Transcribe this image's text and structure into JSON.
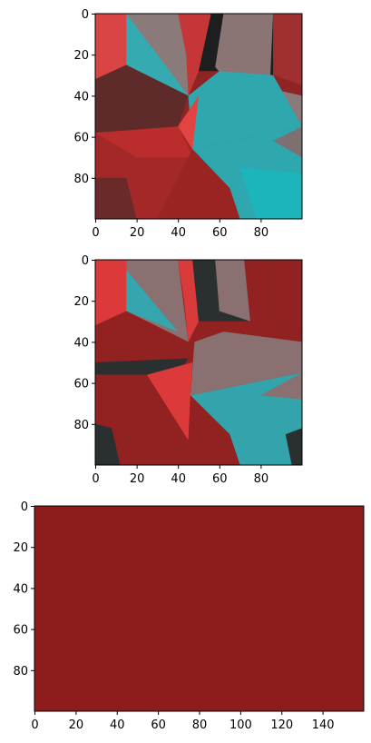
{
  "chart_data": [
    {
      "type": "image",
      "title": "",
      "xlim": [
        0,
        100
      ],
      "ylim": [
        100,
        0
      ],
      "xticks": [
        0,
        20,
        40,
        60,
        80
      ],
      "yticks": [
        0,
        20,
        40,
        60,
        80
      ],
      "description_colors": [
        "#d93a3a",
        "#33a9b0",
        "#8a7070",
        "#941e1e",
        "#2a2d2f",
        "#1fb7bd"
      ],
      "regions": [
        {
          "color": "#8f2424",
          "points": [
            [
              0,
              0
            ],
            [
              100,
              0
            ],
            [
              100,
              100
            ],
            [
              0,
              100
            ]
          ]
        },
        {
          "color": "#d94444",
          "points": [
            [
              0,
              0
            ],
            [
              15,
              0
            ],
            [
              15,
              25
            ],
            [
              0,
              32
            ]
          ]
        },
        {
          "color": "#8a7a7a",
          "points": [
            [
              15,
              0
            ],
            [
              56,
              0
            ],
            [
              45,
              40
            ],
            [
              15,
              25
            ]
          ]
        },
        {
          "color": "#35aab0",
          "points": [
            [
              15,
              0
            ],
            [
              45,
              40
            ],
            [
              15,
              25
            ]
          ]
        },
        {
          "color": "#c53636",
          "points": [
            [
              40,
              0
            ],
            [
              57,
              0
            ],
            [
              50,
              28
            ],
            [
              45,
              40
            ],
            [
              44,
              20
            ]
          ]
        },
        {
          "color": "#1d1e20",
          "points": [
            [
              56,
              0
            ],
            [
              100,
              0
            ],
            [
              100,
              35
            ],
            [
              86,
              30
            ],
            [
              60,
              28
            ],
            [
              50,
              28
            ]
          ]
        },
        {
          "color": "#8b7474",
          "points": [
            [
              62,
              0
            ],
            [
              86,
              0
            ],
            [
              84,
              45
            ],
            [
              70,
              40
            ],
            [
              58,
              26
            ]
          ]
        },
        {
          "color": "#a03030",
          "points": [
            [
              86,
              0
            ],
            [
              100,
              0
            ],
            [
              100,
              35
            ],
            [
              86,
              30
            ]
          ]
        },
        {
          "color": "#5e2a2a",
          "points": [
            [
              0,
              32
            ],
            [
              15,
              25
            ],
            [
              45,
              40
            ],
            [
              40,
              55
            ],
            [
              0,
              58
            ]
          ]
        },
        {
          "color": "#8a7a7a",
          "points": [
            [
              45,
              40
            ],
            [
              65,
              32
            ],
            [
              100,
              40
            ],
            [
              100,
              55
            ],
            [
              47,
              66
            ]
          ]
        },
        {
          "color": "#2fa7ae",
          "points": [
            [
              45,
              40
            ],
            [
              60,
              28
            ],
            [
              86,
              30
            ],
            [
              100,
              55
            ],
            [
              47,
              66
            ]
          ]
        },
        {
          "color": "#e24444",
          "points": [
            [
              40,
              55
            ],
            [
              50,
              40
            ],
            [
              47,
              66
            ],
            [
              38,
              70
            ]
          ]
        },
        {
          "color": "#a52828",
          "points": [
            [
              0,
              58
            ],
            [
              40,
              55
            ],
            [
              47,
              66
            ],
            [
              30,
              100
            ],
            [
              0,
              100
            ]
          ]
        },
        {
          "color": "#bb2d2d",
          "points": [
            [
              0,
              58
            ],
            [
              40,
              55
            ],
            [
              47,
              70
            ],
            [
              20,
              70
            ]
          ]
        },
        {
          "color": "#2fa7ae",
          "points": [
            [
              47,
              66
            ],
            [
              100,
              55
            ],
            [
              100,
              100
            ],
            [
              70,
              100
            ],
            [
              65,
              85
            ]
          ]
        },
        {
          "color": "#1cb5bb",
          "points": [
            [
              70,
              75
            ],
            [
              100,
              78
            ],
            [
              100,
              100
            ],
            [
              78,
              100
            ]
          ]
        },
        {
          "color": "#9a2323",
          "points": [
            [
              30,
              100
            ],
            [
              47,
              66
            ],
            [
              65,
              85
            ],
            [
              70,
              100
            ]
          ]
        },
        {
          "color": "#6b2a2a",
          "points": [
            [
              0,
              80
            ],
            [
              15,
              80
            ],
            [
              20,
              100
            ],
            [
              0,
              100
            ]
          ]
        },
        {
          "color": "#7d7070",
          "points": [
            [
              86,
              62
            ],
            [
              100,
              55
            ],
            [
              100,
              70
            ]
          ]
        }
      ]
    },
    {
      "type": "image",
      "title": "",
      "xlim": [
        0,
        100
      ],
      "ylim": [
        100,
        0
      ],
      "xticks": [
        0,
        20,
        40,
        60,
        80
      ],
      "yticks": [
        0,
        20,
        40,
        60,
        80
      ],
      "regions": [
        {
          "color": "#922222",
          "points": [
            [
              0,
              0
            ],
            [
              100,
              0
            ],
            [
              100,
              100
            ],
            [
              0,
              100
            ]
          ]
        },
        {
          "color": "#dc3a3a",
          "points": [
            [
              0,
              0
            ],
            [
              15,
              0
            ],
            [
              15,
              25
            ],
            [
              0,
              32
            ]
          ]
        },
        {
          "color": "#8a7070",
          "points": [
            [
              15,
              0
            ],
            [
              40,
              0
            ],
            [
              45,
              40
            ],
            [
              15,
              25
            ]
          ]
        },
        {
          "color": "#35a6ad",
          "points": [
            [
              15,
              5
            ],
            [
              40,
              35
            ],
            [
              15,
              25
            ]
          ]
        },
        {
          "color": "#d93a3a",
          "points": [
            [
              40,
              0
            ],
            [
              47,
              0
            ],
            [
              50,
              30
            ],
            [
              45,
              40
            ],
            [
              43,
              20
            ]
          ]
        },
        {
          "color": "#2a3030",
          "points": [
            [
              47,
              0
            ],
            [
              100,
              0
            ],
            [
              100,
              35
            ],
            [
              85,
              30
            ],
            [
              55,
              30
            ],
            [
              50,
              30
            ]
          ]
        },
        {
          "color": "#8a7070",
          "points": [
            [
              58,
              0
            ],
            [
              72,
              0
            ],
            [
              75,
              30
            ],
            [
              60,
              25
            ]
          ]
        },
        {
          "color": "#922222",
          "points": [
            [
              85,
              0
            ],
            [
              100,
              0
            ],
            [
              100,
              35
            ],
            [
              85,
              30
            ]
          ]
        },
        {
          "color": "#922222",
          "points": [
            [
              72,
              0
            ],
            [
              85,
              0
            ],
            [
              85,
              30
            ],
            [
              75,
              30
            ]
          ]
        },
        {
          "color": "#922222",
          "points": [
            [
              0,
              32
            ],
            [
              15,
              25
            ],
            [
              45,
              40
            ],
            [
              40,
              52
            ],
            [
              0,
              52
            ]
          ]
        },
        {
          "color": "#2a3030",
          "points": [
            [
              0,
              50
            ],
            [
              45,
              48
            ],
            [
              40,
              56
            ],
            [
              0,
              56
            ]
          ]
        },
        {
          "color": "#8a7070",
          "points": [
            [
              48,
              40
            ],
            [
              62,
              35
            ],
            [
              100,
              40
            ],
            [
              100,
              55
            ],
            [
              46,
              66
            ]
          ]
        },
        {
          "color": "#33a4ab",
          "points": [
            [
              46,
              66
            ],
            [
              100,
              55
            ],
            [
              100,
              100
            ],
            [
              70,
              100
            ],
            [
              65,
              85
            ]
          ]
        },
        {
          "color": "#dc3a3a",
          "points": [
            [
              25,
              56
            ],
            [
              47,
              50
            ],
            [
              46,
              66
            ],
            [
              45,
              88
            ]
          ]
        },
        {
          "color": "#922222",
          "points": [
            [
              0,
              56
            ],
            [
              25,
              56
            ],
            [
              45,
              88
            ],
            [
              40,
              100
            ],
            [
              0,
              100
            ]
          ]
        },
        {
          "color": "#2a3030",
          "points": [
            [
              0,
              80
            ],
            [
              8,
              82
            ],
            [
              12,
              100
            ],
            [
              0,
              100
            ]
          ]
        },
        {
          "color": "#922222",
          "points": [
            [
              45,
              88
            ],
            [
              46,
              66
            ],
            [
              65,
              85
            ],
            [
              70,
              100
            ],
            [
              40,
              100
            ]
          ]
        },
        {
          "color": "#8a7070",
          "points": [
            [
              80,
              66
            ],
            [
              100,
              55
            ],
            [
              100,
              68
            ]
          ]
        },
        {
          "color": "#2a3030",
          "points": [
            [
              92,
              85
            ],
            [
              100,
              82
            ],
            [
              100,
              100
            ],
            [
              95,
              100
            ]
          ]
        }
      ]
    },
    {
      "type": "image",
      "title": "",
      "xlim": [
        0,
        160
      ],
      "ylim": [
        100,
        0
      ],
      "xticks": [
        0,
        20,
        40,
        60,
        80,
        100,
        120,
        140
      ],
      "yticks": [
        0,
        20,
        40,
        60,
        80
      ],
      "fill_color": "#8f1c1c"
    }
  ]
}
